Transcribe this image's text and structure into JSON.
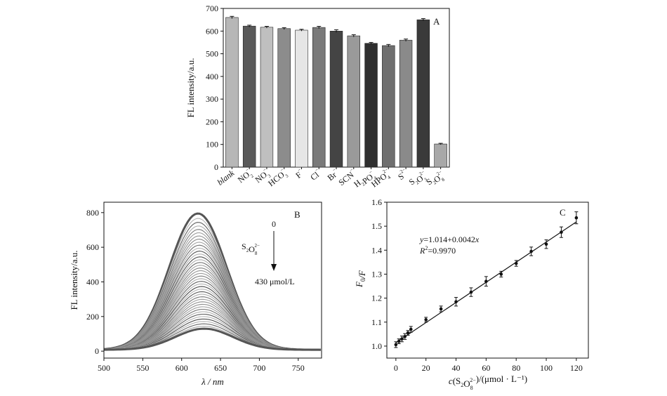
{
  "chart_data": [
    {
      "type": "bar",
      "panel": "A",
      "ylabel": "FL intensity/a.u.",
      "ylim": [
        0,
        700
      ],
      "yticks": [
        0,
        100,
        200,
        300,
        400,
        500,
        600,
        700
      ],
      "categories": [
        {
          "base": "blank",
          "italic": true
        },
        {
          "base": "NO",
          "sub": "2",
          "sup": "−"
        },
        {
          "base": "NO",
          "sub": "3",
          "sup": "−"
        },
        {
          "base": "HCO",
          "sub": "3",
          "sup": "−"
        },
        {
          "base": "F",
          "sup": "−"
        },
        {
          "base": "Cl",
          "sup": "−"
        },
        {
          "base": "Br",
          "sup": "−"
        },
        {
          "base": "SCN",
          "sup": "−"
        },
        {
          "base": "H",
          "sub": "2",
          "base2": "PO",
          "sub2": "4",
          "sup2": "−"
        },
        {
          "base": "HPO",
          "sub": "4",
          "sup": "2−"
        },
        {
          "base": "S",
          "sup": "2−"
        },
        {
          "base": "S",
          "sub": "2",
          "base2": "O",
          "sub2": "3",
          "sup2": "2−"
        },
        {
          "base": "S",
          "sub": "2",
          "base2": "O",
          "sub2": "8",
          "sup2": "2−"
        }
      ],
      "values": [
        660,
        622,
        617,
        611,
        604,
        616,
        600,
        579,
        546,
        536,
        560,
        650,
        102
      ],
      "errors": [
        5,
        4,
        4,
        4,
        4,
        5,
        6,
        5,
        4,
        5,
        5,
        5,
        3
      ],
      "colors": [
        "#b7b7b7",
        "#595959",
        "#bfbfbf",
        "#8c8c8c",
        "#e6e6e6",
        "#7a7a7a",
        "#444444",
        "#9a9a9a",
        "#2f2f2f",
        "#6f6f6f",
        "#8a8a8a",
        "#3a3a3a",
        "#a8a8a8"
      ]
    },
    {
      "type": "line",
      "panel": "B",
      "xlabel": "λ / nm",
      "ylabel": "FL intensity/a.u.",
      "xlim": [
        500,
        780
      ],
      "ylim": [
        -40,
        860
      ],
      "xticks": [
        500,
        550,
        600,
        650,
        700,
        750
      ],
      "yticks": [
        0,
        200,
        400,
        600,
        800
      ],
      "annotation": {
        "start_label": "0",
        "analyte": {
          "base": "S",
          "sub": "2",
          "base2": "O",
          "sub2": "8",
          "sup2": "2−"
        },
        "end_label": "430 μmol/L"
      },
      "curve_model": {
        "peak_min": 130,
        "peak_max": 795,
        "curve_count": 42,
        "center_nm": 621,
        "sigma_nm": 37,
        "baseline": 8
      }
    },
    {
      "type": "scatter",
      "panel": "C",
      "xlabel": {
        "pre": "c",
        "base": "(S",
        "sub": "2",
        "base2": "O",
        "sub2": "8",
        "sup2": "2−",
        "post": ")/(μmol · L⁻¹)"
      },
      "ylabel": {
        "pre": "F",
        "sub": "0",
        "post": "/F"
      },
      "xlim": [
        -6,
        128
      ],
      "ylim": [
        0.95,
        1.6
      ],
      "xticks": [
        0,
        20,
        40,
        60,
        80,
        100,
        120
      ],
      "yticks": [
        1.0,
        1.1,
        1.2,
        1.3,
        1.4,
        1.5,
        1.6
      ],
      "points": {
        "x": [
          0,
          2,
          4,
          6,
          8,
          10,
          20,
          30,
          40,
          50,
          60,
          70,
          80,
          90,
          100,
          110,
          120
        ],
        "y": [
          1.006,
          1.02,
          1.03,
          1.04,
          1.055,
          1.07,
          1.11,
          1.155,
          1.185,
          1.225,
          1.27,
          1.3,
          1.345,
          1.395,
          1.425,
          1.475,
          1.535
        ],
        "errors": [
          0.012,
          0.01,
          0.012,
          0.012,
          0.01,
          0.012,
          0.01,
          0.012,
          0.018,
          0.018,
          0.02,
          0.012,
          0.012,
          0.018,
          0.018,
          0.022,
          0.025
        ]
      },
      "fit": {
        "intercept": 1.014,
        "slope": 0.0042
      },
      "equation": {
        "lhs": "y",
        "rhs": "=1.014+0.0042",
        "var": "x"
      },
      "r2": {
        "label": "R",
        "sup": "2",
        "value": "=0.9970"
      }
    }
  ]
}
